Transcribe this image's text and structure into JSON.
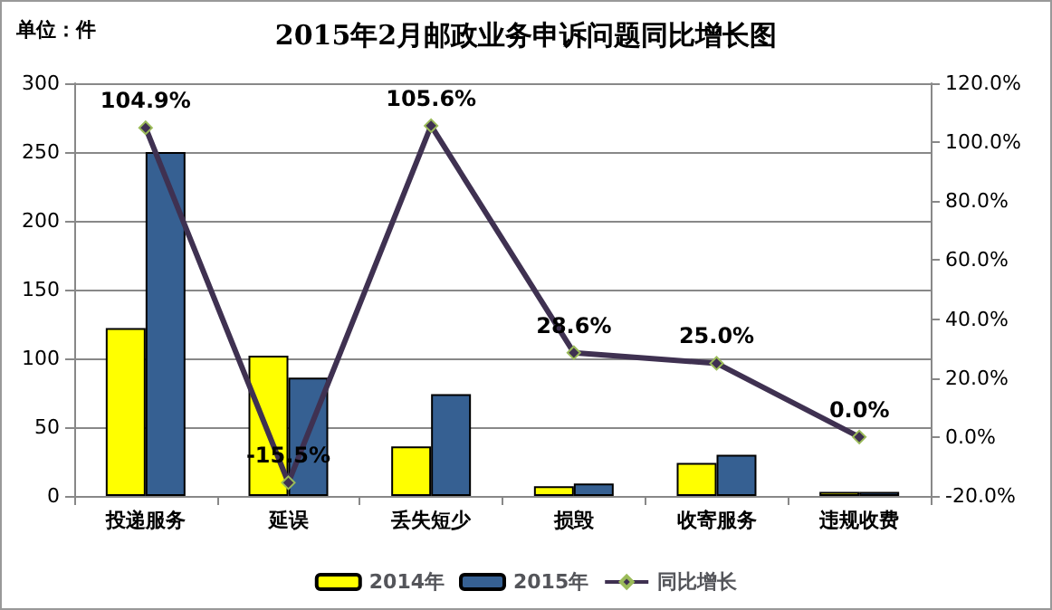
{
  "chart_data": {
    "type": "bar",
    "title": "2015年2月邮政业务申诉问题同比增长图",
    "annotations": [
      "单位：件"
    ],
    "categories": [
      "投递服务",
      "延误",
      "丢失短少",
      "损毁",
      "收寄服务",
      "违规收费"
    ],
    "series": [
      {
        "name": "2014年",
        "color": "#ffff00",
        "values": [
          122,
          102,
          36,
          7,
          24,
          3
        ]
      },
      {
        "name": "2015年",
        "color": "#366092",
        "values": [
          250,
          86,
          74,
          9,
          30,
          3
        ]
      },
      {
        "name": "同比增长",
        "type": "line",
        "axis": "y2",
        "color": "#3f3151",
        "marker": "diamond",
        "values": [
          104.9,
          -15.5,
          105.6,
          28.6,
          25.0,
          0.0
        ],
        "value_labels": [
          "104.9%",
          "-15.5%",
          "105.6%",
          "28.6%",
          "25.0%",
          "0.0%"
        ]
      }
    ],
    "ylim": [
      0,
      300
    ],
    "yticks": [
      0,
      50,
      100,
      150,
      200,
      250,
      300
    ],
    "y2lim": [
      -20,
      120
    ],
    "y2ticks": [
      {
        "value": -20,
        "label": "-20.0%"
      },
      {
        "value": 0,
        "label": "0.0%"
      },
      {
        "value": 20,
        "label": "20.0%"
      },
      {
        "value": 40,
        "label": "40.0%"
      },
      {
        "value": 60,
        "label": "60.0%"
      },
      {
        "value": 80,
        "label": "80.0%"
      },
      {
        "value": 100,
        "label": "100.0%"
      },
      {
        "value": 120,
        "label": "120.0%"
      }
    ],
    "grid": "y",
    "legend": "bottom"
  }
}
